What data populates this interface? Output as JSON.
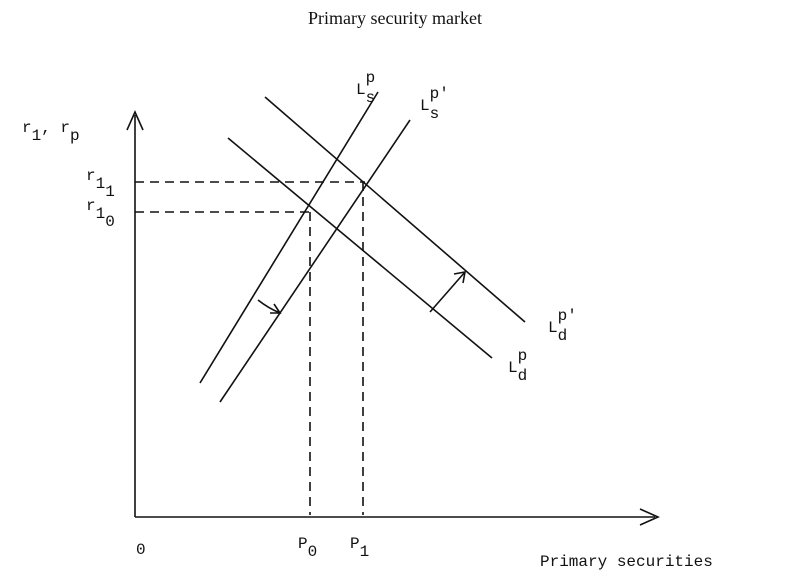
{
  "title": "Primary security market",
  "y_axis_label": [
    {
      "t": "r",
      "pos": "base"
    },
    {
      "t": "1",
      "pos": "sub"
    },
    {
      "t": ", r",
      "pos": "base"
    },
    {
      "t": "p",
      "pos": "sub"
    }
  ],
  "x_axis_label": "Primary securities",
  "origin": "0",
  "y_ticks": [
    [
      {
        "t": "r",
        "pos": "base"
      },
      {
        "t": "1",
        "pos": "sub"
      },
      {
        "t": "1",
        "pos": "sub2"
      }
    ],
    [
      {
        "t": "r",
        "pos": "base"
      },
      {
        "t": "1",
        "pos": "sub"
      },
      {
        "t": "0",
        "pos": "sub2"
      }
    ]
  ],
  "x_ticks": [
    [
      {
        "t": "P",
        "pos": "base"
      },
      {
        "t": "0",
        "pos": "sub"
      }
    ],
    [
      {
        "t": "P",
        "pos": "base"
      },
      {
        "t": "1",
        "pos": "sub"
      }
    ]
  ],
  "curves": [
    [
      {
        "t": "L",
        "pos": "base"
      },
      {
        "t": "p",
        "pos": "sup"
      },
      {
        "t": "s",
        "pos": "sub"
      }
    ],
    [
      {
        "t": "L",
        "pos": "base"
      },
      {
        "t": "p'",
        "pos": "sup"
      },
      {
        "t": "s",
        "pos": "sub"
      }
    ],
    [
      {
        "t": "L",
        "pos": "base"
      },
      {
        "t": "p'",
        "pos": "sup"
      },
      {
        "t": "d",
        "pos": "sub"
      }
    ],
    [
      {
        "t": "L",
        "pos": "base"
      },
      {
        "t": "p",
        "pos": "sup"
      },
      {
        "t": "d",
        "pos": "sub"
      }
    ]
  ]
}
